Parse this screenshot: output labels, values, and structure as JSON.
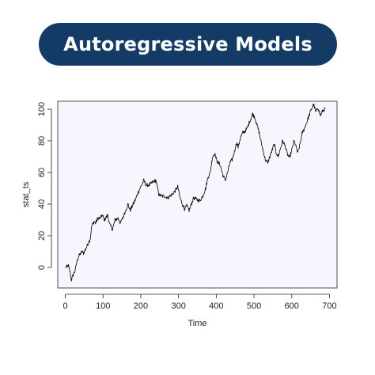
{
  "banner": {
    "title": "Autoregressive Models"
  },
  "colors": {
    "banner_bg": "#143a66",
    "plot_bg": "#f6f7fe",
    "line": "#000000"
  },
  "chart_data": {
    "type": "line",
    "title": "",
    "xlabel": "Time",
    "ylabel": "stat_ts",
    "xlim": [
      -20,
      720
    ],
    "ylim": [
      -13,
      105
    ],
    "xticks": [
      0,
      100,
      200,
      300,
      400,
      500,
      600,
      700
    ],
    "yticks": [
      0,
      20,
      40,
      60,
      80,
      100
    ],
    "grid": false,
    "series": [
      {
        "keypoints": [
          [
            1,
            0
          ],
          [
            8,
            1
          ],
          [
            12,
            -2
          ],
          [
            16,
            -8
          ],
          [
            22,
            -4
          ],
          [
            26,
            -2
          ],
          [
            32,
            5
          ],
          [
            38,
            8
          ],
          [
            44,
            10
          ],
          [
            48,
            9
          ],
          [
            55,
            12
          ],
          [
            60,
            15
          ],
          [
            66,
            18
          ],
          [
            70,
            26
          ],
          [
            76,
            29
          ],
          [
            80,
            28
          ],
          [
            86,
            31
          ],
          [
            92,
            31
          ],
          [
            98,
            33
          ],
          [
            104,
            30
          ],
          [
            112,
            33
          ],
          [
            118,
            27
          ],
          [
            125,
            24
          ],
          [
            132,
            30
          ],
          [
            140,
            31
          ],
          [
            146,
            28
          ],
          [
            152,
            31
          ],
          [
            160,
            36
          ],
          [
            166,
            40
          ],
          [
            172,
            36
          ],
          [
            178,
            39
          ],
          [
            186,
            43
          ],
          [
            194,
            48
          ],
          [
            200,
            51
          ],
          [
            208,
            55
          ],
          [
            214,
            52
          ],
          [
            222,
            52
          ],
          [
            232,
            54
          ],
          [
            240,
            55
          ],
          [
            248,
            46
          ],
          [
            256,
            45
          ],
          [
            264,
            45
          ],
          [
            272,
            44
          ],
          [
            282,
            46
          ],
          [
            290,
            48
          ],
          [
            298,
            51
          ],
          [
            304,
            44
          ],
          [
            310,
            40
          ],
          [
            316,
            37
          ],
          [
            322,
            39
          ],
          [
            328,
            36
          ],
          [
            334,
            40
          ],
          [
            340,
            44
          ],
          [
            348,
            43
          ],
          [
            356,
            42
          ],
          [
            364,
            45
          ],
          [
            372,
            50
          ],
          [
            378,
            57
          ],
          [
            384,
            60
          ],
          [
            390,
            70
          ],
          [
            396,
            72
          ],
          [
            402,
            67
          ],
          [
            410,
            65
          ],
          [
            418,
            58
          ],
          [
            424,
            55
          ],
          [
            430,
            60
          ],
          [
            436,
            66
          ],
          [
            442,
            68
          ],
          [
            448,
            73
          ],
          [
            454,
            79
          ],
          [
            458,
            76
          ],
          [
            464,
            82
          ],
          [
            470,
            85
          ],
          [
            476,
            86
          ],
          [
            482,
            88
          ],
          [
            488,
            92
          ],
          [
            492,
            94
          ],
          [
            496,
            97
          ],
          [
            502,
            95
          ],
          [
            508,
            90
          ],
          [
            514,
            85
          ],
          [
            518,
            80
          ],
          [
            524,
            74
          ],
          [
            530,
            68
          ],
          [
            536,
            66
          ],
          [
            542,
            70
          ],
          [
            548,
            74
          ],
          [
            554,
            78
          ],
          [
            558,
            73
          ],
          [
            564,
            70
          ],
          [
            570,
            75
          ],
          [
            576,
            80
          ],
          [
            582,
            77
          ],
          [
            588,
            72
          ],
          [
            594,
            69
          ],
          [
            600,
            74
          ],
          [
            606,
            80
          ],
          [
            612,
            76
          ],
          [
            616,
            72
          ],
          [
            622,
            78
          ],
          [
            628,
            85
          ],
          [
            634,
            88
          ],
          [
            640,
            92
          ],
          [
            646,
            96
          ],
          [
            652,
            100
          ],
          [
            658,
            103
          ],
          [
            664,
            98
          ],
          [
            670,
            101
          ],
          [
            676,
            96
          ],
          [
            682,
            99
          ],
          [
            688,
            100
          ]
        ]
      }
    ]
  }
}
